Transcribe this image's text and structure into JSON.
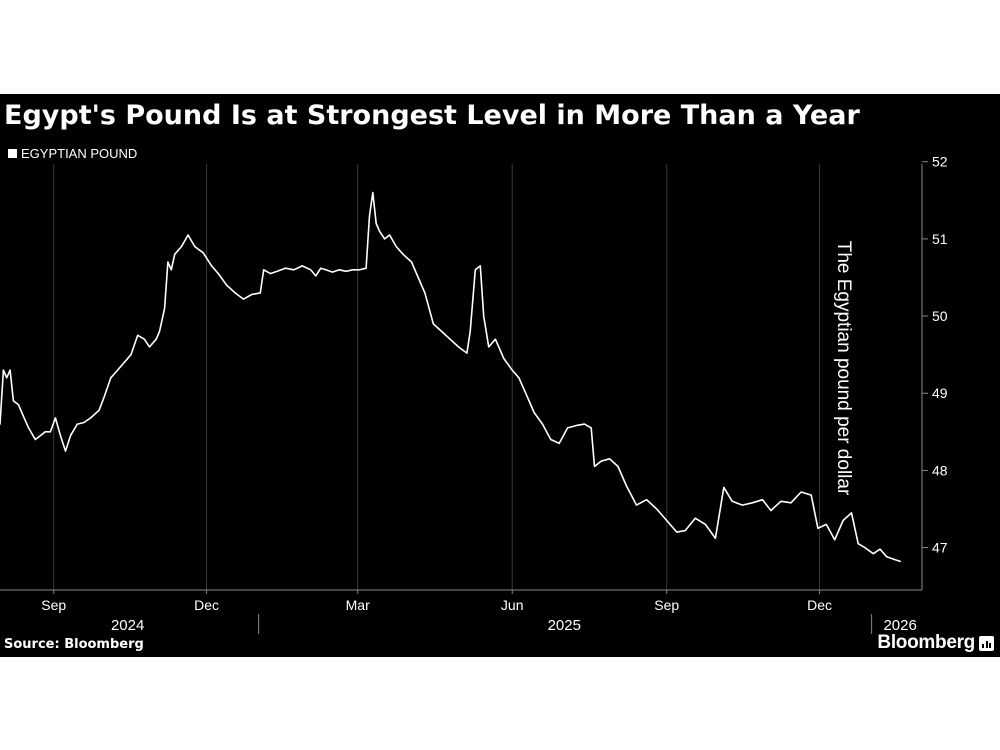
{
  "title": "Egypt's Pound Is at Strongest Level in More Than a Year",
  "legend": "EGYPTIAN POUND",
  "source": "Source: Bloomberg",
  "brand": "Bloomberg",
  "colors": {
    "background": "#000000",
    "line": "#ffffff",
    "grid": "#3a3a3a",
    "text": "#ffffff"
  },
  "chart_data": {
    "type": "line",
    "title": "Egypt's Pound Is at Strongest Level in More Than a Year",
    "ylabel": "The Egyptian pound per dollar",
    "ylim": [
      46.45,
      52.1
    ],
    "yticks": [
      47,
      48,
      49,
      50,
      51,
      52
    ],
    "y_axis_side": "right",
    "xlim": [
      "2024-07-31",
      "2026-01-31"
    ],
    "x_month_ticks": [
      {
        "label": "Sep",
        "date": "2024-09-01"
      },
      {
        "label": "Dec",
        "date": "2024-12-01"
      },
      {
        "label": "Mar",
        "date": "2025-03-01"
      },
      {
        "label": "Jun",
        "date": "2025-06-01"
      },
      {
        "label": "Sep",
        "date": "2025-09-01"
      },
      {
        "label": "Dec",
        "date": "2025-12-01"
      }
    ],
    "x_year_labels": [
      {
        "label": "2024",
        "date": "2024-10-15"
      },
      {
        "label": "2025",
        "date": "2025-07-02"
      },
      {
        "label": "2026",
        "date": "2026-01-18"
      }
    ],
    "x_year_dividers": [
      "2025-01-01",
      "2026-01-01"
    ],
    "grid": "vertical",
    "legend_position": "top-left",
    "series": [
      {
        "name": "EGYPTIAN POUND",
        "points": [
          [
            "2024-07-31",
            48.6
          ],
          [
            "2024-08-02",
            49.3
          ],
          [
            "2024-08-04",
            49.2
          ],
          [
            "2024-08-06",
            49.3
          ],
          [
            "2024-08-08",
            48.9
          ],
          [
            "2024-08-11",
            48.85
          ],
          [
            "2024-08-14",
            48.7
          ],
          [
            "2024-08-17",
            48.55
          ],
          [
            "2024-08-21",
            48.4
          ],
          [
            "2024-08-24",
            48.45
          ],
          [
            "2024-08-27",
            48.5
          ],
          [
            "2024-08-30",
            48.5
          ],
          [
            "2024-09-02",
            48.68
          ],
          [
            "2024-09-05",
            48.45
          ],
          [
            "2024-09-08",
            48.25
          ],
          [
            "2024-09-11",
            48.45
          ],
          [
            "2024-09-15",
            48.6
          ],
          [
            "2024-09-19",
            48.62
          ],
          [
            "2024-09-23",
            48.68
          ],
          [
            "2024-09-28",
            48.78
          ],
          [
            "2024-10-01",
            48.95
          ],
          [
            "2024-10-05",
            49.2
          ],
          [
            "2024-10-09",
            49.3
          ],
          [
            "2024-10-13",
            49.4
          ],
          [
            "2024-10-17",
            49.5
          ],
          [
            "2024-10-21",
            49.75
          ],
          [
            "2024-10-25",
            49.7
          ],
          [
            "2024-10-28",
            49.6
          ],
          [
            "2024-11-01",
            49.7
          ],
          [
            "2024-11-03",
            49.8
          ],
          [
            "2024-11-06",
            50.1
          ],
          [
            "2024-11-08",
            50.7
          ],
          [
            "2024-11-10",
            50.6
          ],
          [
            "2024-11-12",
            50.8
          ],
          [
            "2024-11-16",
            50.9
          ],
          [
            "2024-11-20",
            51.05
          ],
          [
            "2024-11-24",
            50.9
          ],
          [
            "2024-11-29",
            50.82
          ],
          [
            "2024-12-04",
            50.65
          ],
          [
            "2024-12-08",
            50.55
          ],
          [
            "2024-12-13",
            50.4
          ],
          [
            "2024-12-18",
            50.3
          ],
          [
            "2024-12-23",
            50.22
          ],
          [
            "2024-12-28",
            50.28
          ],
          [
            "2025-01-02",
            50.3
          ],
          [
            "2025-01-04",
            50.6
          ],
          [
            "2025-01-08",
            50.55
          ],
          [
            "2025-01-12",
            50.58
          ],
          [
            "2025-01-17",
            50.62
          ],
          [
            "2025-01-22",
            50.6
          ],
          [
            "2025-01-27",
            50.65
          ],
          [
            "2025-02-01",
            50.6
          ],
          [
            "2025-02-04",
            50.52
          ],
          [
            "2025-02-07",
            50.62
          ],
          [
            "2025-02-10",
            50.6
          ],
          [
            "2025-02-14",
            50.57
          ],
          [
            "2025-02-18",
            50.6
          ],
          [
            "2025-02-22",
            50.58
          ],
          [
            "2025-02-26",
            50.6
          ],
          [
            "2025-03-02",
            50.6
          ],
          [
            "2025-03-06",
            50.62
          ],
          [
            "2025-03-08",
            51.3
          ],
          [
            "2025-03-10",
            51.6
          ],
          [
            "2025-03-12",
            51.2
          ],
          [
            "2025-03-14",
            51.1
          ],
          [
            "2025-03-17",
            51.0
          ],
          [
            "2025-03-20",
            51.05
          ],
          [
            "2025-03-24",
            50.9
          ],
          [
            "2025-03-28",
            50.8
          ],
          [
            "2025-04-02",
            50.7
          ],
          [
            "2025-04-06",
            50.5
          ],
          [
            "2025-04-10",
            50.3
          ],
          [
            "2025-04-15",
            49.9
          ],
          [
            "2025-04-20",
            49.8
          ],
          [
            "2025-04-25",
            49.7
          ],
          [
            "2025-04-30",
            49.6
          ],
          [
            "2025-05-05",
            49.52
          ],
          [
            "2025-05-07",
            49.8
          ],
          [
            "2025-05-10",
            50.6
          ],
          [
            "2025-05-13",
            50.65
          ],
          [
            "2025-05-15",
            50.0
          ],
          [
            "2025-05-18",
            49.6
          ],
          [
            "2025-05-22",
            49.7
          ],
          [
            "2025-05-27",
            49.45
          ],
          [
            "2025-06-01",
            49.3
          ],
          [
            "2025-06-05",
            49.2
          ],
          [
            "2025-06-09",
            49.0
          ],
          [
            "2025-06-14",
            48.75
          ],
          [
            "2025-06-19",
            48.6
          ],
          [
            "2025-06-24",
            48.4
          ],
          [
            "2025-06-29",
            48.35
          ],
          [
            "2025-07-04",
            48.55
          ],
          [
            "2025-07-09",
            48.58
          ],
          [
            "2025-07-14",
            48.6
          ],
          [
            "2025-07-18",
            48.55
          ],
          [
            "2025-07-20",
            48.05
          ],
          [
            "2025-07-24",
            48.12
          ],
          [
            "2025-07-29",
            48.15
          ],
          [
            "2025-08-03",
            48.05
          ],
          [
            "2025-08-08",
            47.8
          ],
          [
            "2025-08-14",
            47.55
          ],
          [
            "2025-08-20",
            47.62
          ],
          [
            "2025-08-26",
            47.5
          ],
          [
            "2025-09-01",
            47.35
          ],
          [
            "2025-09-07",
            47.2
          ],
          [
            "2025-09-12",
            47.22
          ],
          [
            "2025-09-18",
            47.38
          ],
          [
            "2025-09-24",
            47.3
          ],
          [
            "2025-09-30",
            47.12
          ],
          [
            "2025-10-05",
            47.78
          ],
          [
            "2025-10-10",
            47.6
          ],
          [
            "2025-10-16",
            47.55
          ],
          [
            "2025-10-22",
            47.58
          ],
          [
            "2025-10-28",
            47.62
          ],
          [
            "2025-11-02",
            47.48
          ],
          [
            "2025-11-08",
            47.6
          ],
          [
            "2025-11-14",
            47.58
          ],
          [
            "2025-11-20",
            47.72
          ],
          [
            "2025-11-26",
            47.68
          ],
          [
            "2025-11-30",
            47.25
          ],
          [
            "2025-12-05",
            47.3
          ],
          [
            "2025-12-10",
            47.1
          ],
          [
            "2025-12-15",
            47.35
          ],
          [
            "2025-12-20",
            47.45
          ],
          [
            "2025-12-24",
            47.05
          ],
          [
            "2025-12-28",
            47.0
          ],
          [
            "2026-01-02",
            46.92
          ],
          [
            "2026-01-06",
            46.98
          ],
          [
            "2026-01-10",
            46.88
          ],
          [
            "2026-01-14",
            46.85
          ],
          [
            "2026-01-18",
            46.82
          ]
        ]
      }
    ]
  }
}
